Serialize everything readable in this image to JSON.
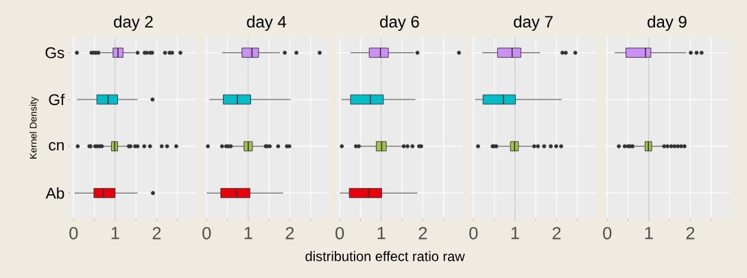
{
  "chart_data": [
    {
      "type": "box",
      "orientation": "horizontal",
      "title": "day 2",
      "ylabel": "Kernel Density",
      "categories": [
        "Gs",
        "Gf",
        "cn",
        "Ab"
      ],
      "colors": [
        "#cc8ff5",
        "#00bec8",
        "#a1c34a",
        "#e8000b"
      ],
      "boxes": [
        {
          "low": 0.66,
          "q1": 0.95,
          "median": 1.07,
          "q3": 1.19,
          "high": 1.48,
          "outliers": [
            0.08,
            0.43,
            0.49,
            0.54,
            0.6,
            1.54,
            1.71,
            1.76,
            1.84,
            1.89,
            2.2,
            2.31,
            2.37,
            2.57
          ]
        },
        {
          "low": 0.08,
          "q1": 0.56,
          "median": 0.83,
          "q3": 1.06,
          "high": 1.54,
          "outliers": [
            1.9
          ]
        },
        {
          "low": 0.71,
          "q1": 0.91,
          "median": 0.99,
          "q3": 1.06,
          "high": 1.29,
          "outliers": [
            0.1,
            0.38,
            0.41,
            0.52,
            0.57,
            0.63,
            0.68,
            1.33,
            1.37,
            1.48,
            1.54,
            1.7,
            1.84,
            2.12,
            2.25,
            2.47
          ]
        },
        {
          "low": 0.02,
          "q1": 0.49,
          "median": 0.72,
          "q3": 1.0,
          "high": 1.54,
          "outliers": [
            1.91
          ]
        }
      ],
      "xlim": [
        -0.07,
        2.95
      ],
      "xticks": [
        0,
        {
          "value": 0.5,
          "label": null
        },
        1,
        {
          "value": 1.5,
          "label": null
        },
        2,
        {
          "value": 2.5,
          "label": null
        }
      ],
      "grid": true,
      "ref_lines": [
        {
          "axis": "x",
          "value": 1,
          "color": "#c8c8c8"
        }
      ]
    },
    {
      "type": "box",
      "orientation": "horizontal",
      "title": "day 4",
      "categories": [
        null,
        null,
        null,
        null
      ],
      "colors": [
        "#cc8ff5",
        "#00bec8",
        "#a1c34a",
        "#e8000b"
      ],
      "boxes": [
        {
          "low": 0.37,
          "q1": 0.85,
          "median": 1.09,
          "q3": 1.25,
          "high": 1.76,
          "outliers": [
            1.88,
            2.16,
            2.72
          ]
        },
        {
          "low": 0.06,
          "q1": 0.4,
          "median": 0.74,
          "q3": 1.06,
          "high": 2.02
        },
        {
          "low": 0.6,
          "q1": 0.9,
          "median": 1.0,
          "q3": 1.1,
          "high": 1.37,
          "outliers": [
            0.03,
            0.37,
            0.47,
            0.52,
            0.58,
            1.42,
            1.46,
            1.52,
            1.72,
            1.93,
            1.99
          ]
        },
        {
          "low": 0.0,
          "q1": 0.34,
          "median": 0.72,
          "q3": 1.04,
          "high": 1.84
        }
      ],
      "xlim": [
        -0.07,
        2.95
      ],
      "xticks": [
        0,
        {
          "value": 0.5,
          "label": null
        },
        1,
        {
          "value": 1.5,
          "label": null
        },
        2,
        {
          "value": 2.5,
          "label": null
        }
      ],
      "grid": true,
      "tick_labels": "x",
      "ref_lines": [
        {
          "axis": "x",
          "value": 1,
          "color": "#c8c8c8"
        }
      ]
    },
    {
      "type": "box",
      "orientation": "horizontal",
      "title": "day 6",
      "xlabel": "distribution effect ratio raw",
      "categories": [
        null,
        null,
        null,
        null
      ],
      "colors": [
        "#cc8ff5",
        "#00bec8",
        "#a1c34a",
        "#e8000b"
      ],
      "boxes": [
        {
          "low": 0.26,
          "q1": 0.71,
          "median": 0.98,
          "q3": 1.17,
          "high": 1.79,
          "outliers": [
            1.87,
            2.87
          ]
        },
        {
          "low": 0.04,
          "q1": 0.26,
          "median": 0.74,
          "q3": 1.05,
          "high": 1.82
        },
        {
          "low": 0.5,
          "q1": 0.88,
          "median": 1.01,
          "q3": 1.12,
          "high": 1.49,
          "outliers": [
            0.05,
            0.39,
            0.46,
            1.54,
            1.63,
            1.75,
            1.91,
            1.96
          ]
        },
        {
          "low": 0.0,
          "q1": 0.23,
          "median": 0.7,
          "q3": 1.01,
          "high": 1.87
        }
      ],
      "xlim": [
        -0.07,
        2.95
      ],
      "xticks": [
        0,
        {
          "value": 0.5,
          "label": null
        },
        1,
        {
          "value": 1.5,
          "label": null
        },
        2,
        {
          "value": 2.5,
          "label": null
        }
      ],
      "grid": true,
      "tick_labels": "x",
      "ref_lines": [
        {
          "axis": "x",
          "value": 1,
          "color": "#c8c8c8"
        }
      ]
    },
    {
      "type": "box",
      "orientation": "horizontal",
      "title": "day 7",
      "categories": [
        null,
        null,
        null,
        null
      ],
      "colors": [
        "#cc8ff5",
        "#00bec8",
        "#a1c34a",
        "#e8000b"
      ],
      "boxes": [
        {
          "low": 0.21,
          "q1": 0.58,
          "median": 0.93,
          "q3": 1.14,
          "high": 1.6,
          "outliers": [
            2.14,
            2.22,
            2.45
          ]
        },
        {
          "low": 0.04,
          "q1": 0.23,
          "median": 0.72,
          "q3": 1.01,
          "high": 2.12
        },
        {
          "low": 0.61,
          "q1": 0.89,
          "median": 0.99,
          "q3": 1.08,
          "high": 1.41,
          "outliers": [
            0.11,
            0.46,
            0.5,
            0.55,
            1.46,
            1.55,
            1.7,
            1.86,
            1.99,
            2.11
          ]
        },
        null
      ],
      "xlim": [
        -0.07,
        2.95
      ],
      "xticks": [
        0,
        {
          "value": 0.5,
          "label": null
        },
        1,
        {
          "value": 1.5,
          "label": null
        },
        2,
        {
          "value": 2.5,
          "label": null
        }
      ],
      "grid": true,
      "tick_labels": "x",
      "ref_lines": [
        {
          "axis": "x",
          "value": 1,
          "color": "#c8c8c8"
        }
      ]
    },
    {
      "type": "box",
      "orientation": "horizontal",
      "title": "day 9",
      "categories": [
        null,
        null,
        null,
        null
      ],
      "colors": [
        "#cc8ff5",
        "#00bec8",
        "#a1c34a",
        "#e8000b"
      ],
      "boxes": [
        {
          "low": 0.18,
          "q1": 0.45,
          "median": 0.92,
          "q3": 1.05,
          "high": 1.9,
          "outliers": [
            2.01,
            2.15,
            2.27
          ]
        },
        null,
        {
          "low": 0.66,
          "q1": 0.91,
          "median": 0.99,
          "q3": 1.07,
          "high": 1.34,
          "outliers": [
            0.28,
            0.42,
            0.5,
            0.55,
            0.61,
            1.37,
            1.45,
            1.54,
            1.62,
            1.7,
            1.78,
            1.86
          ]
        },
        null
      ],
      "xlim": [
        -0.07,
        2.95
      ],
      "xticks": [
        0,
        {
          "value": 0.5,
          "label": null
        },
        1,
        {
          "value": 1.5,
          "label": null
        },
        2,
        {
          "value": 2.5,
          "label": null
        }
      ],
      "grid": true,
      "tick_labels": "x",
      "ref_lines": [
        {
          "axis": "x",
          "value": 1,
          "color": "#c8c8c8"
        }
      ]
    }
  ]
}
